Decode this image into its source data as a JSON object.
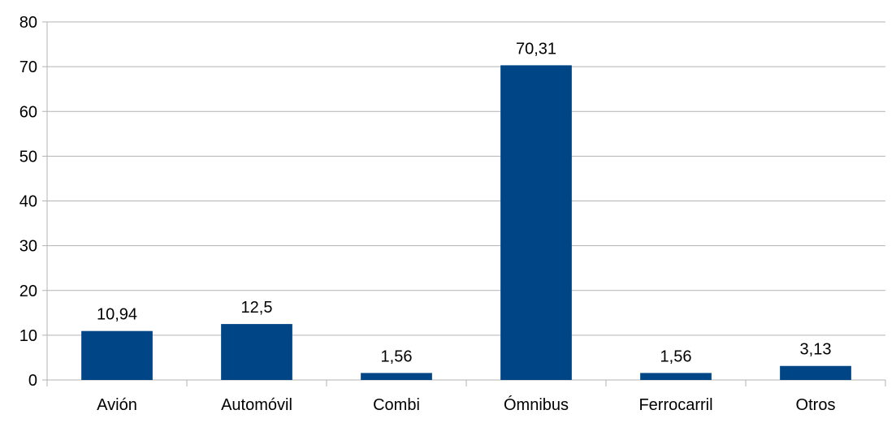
{
  "chart_data": {
    "type": "bar",
    "categories": [
      "Avión",
      "Automóvil",
      "Combi",
      "Ómnibus",
      "Ferrocarril",
      "Otros"
    ],
    "values": [
      10.94,
      12.5,
      1.56,
      70.31,
      1.56,
      3.13
    ],
    "data_labels": [
      "10,94",
      "12,5",
      "1,56",
      "70,31",
      "1,56",
      "3,13"
    ],
    "title": "",
    "xlabel": "",
    "ylabel": "",
    "ylim": [
      0,
      80
    ],
    "yticks": [
      0,
      10,
      20,
      30,
      40,
      50,
      60,
      70,
      80
    ],
    "grid": true,
    "legend": "none",
    "bar_color": "#004586",
    "grid_color": "#b3b3b3"
  }
}
